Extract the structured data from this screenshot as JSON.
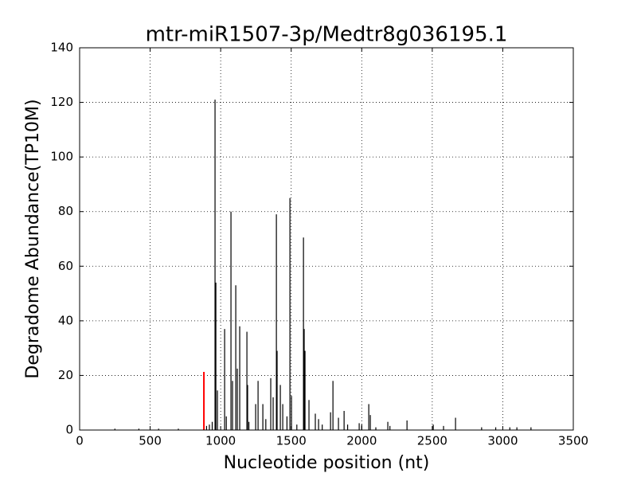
{
  "chart_data": {
    "type": "stem",
    "title": "mtr-miR1507-3p/Medtr8g036195.1",
    "xlabel": "Nucleotide position (nt)",
    "ylabel": "Degradome Abundance(TP10M)",
    "xlim": [
      0,
      3500
    ],
    "xticks": [
      0,
      500,
      1000,
      1500,
      2000,
      2500,
      3000,
      3500
    ],
    "ylim": [
      0,
      140
    ],
    "yticks": [
      0,
      20,
      40,
      60,
      80,
      100,
      120,
      140
    ],
    "grid": true,
    "series": [
      {
        "color": "#000000",
        "x": [
          250,
          420,
          560,
          700,
          900,
          920,
          940,
          960,
          966,
          977,
          1028,
          1040,
          1073,
          1084,
          1107,
          1118,
          1135,
          1186,
          1191,
          1200,
          1248,
          1265,
          1299,
          1320,
          1355,
          1372,
          1395,
          1400,
          1423,
          1440,
          1470,
          1491,
          1502,
          1540,
          1587,
          1592,
          1598,
          1626,
          1671,
          1694,
          1720,
          1779,
          1796,
          1835,
          1875,
          1900,
          1982,
          2000,
          2050,
          2061,
          2100,
          2185,
          2200,
          2321,
          2507,
          2580,
          2665,
          2850,
          2950,
          3050,
          3100,
          3200
        ],
        "values": [
          0.5,
          0.5,
          0.5,
          0.5,
          1.5,
          2,
          3,
          121,
          54,
          14.5,
          37,
          5,
          80,
          18,
          53,
          22.5,
          38,
          36,
          16.5,
          3,
          9.5,
          18,
          9.5,
          4,
          19,
          12,
          79,
          29,
          16.5,
          9.5,
          5,
          85,
          12.5,
          2,
          70.5,
          37,
          29,
          11,
          6,
          4,
          2,
          6.5,
          18,
          4.5,
          7,
          2,
          2.5,
          2,
          9.5,
          5.5,
          1,
          3,
          1.5,
          3.5,
          2,
          1.5,
          4.5,
          1,
          1,
          1,
          1,
          1
        ]
      },
      {
        "color": "#ff0000",
        "x": [
          881
        ],
        "values": [
          21.3
        ]
      }
    ]
  }
}
